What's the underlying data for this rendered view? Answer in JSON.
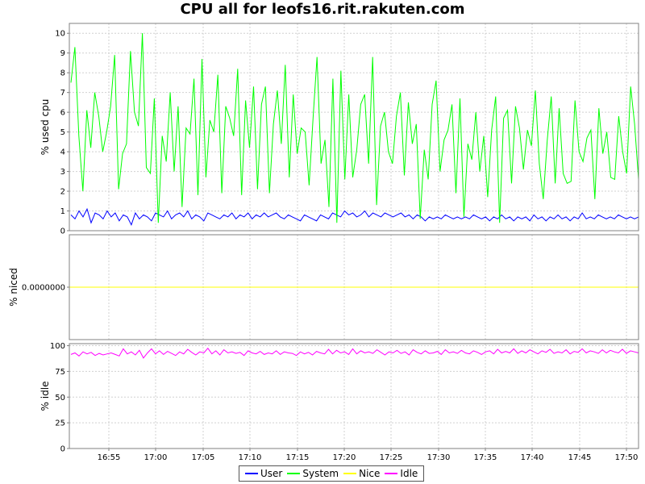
{
  "chart_data": {
    "type": "line",
    "title": "CPU all for leofs16.rit.rakuten.com",
    "x_ticks": [
      "16:55",
      "17:00",
      "17:05",
      "17:10",
      "17:15",
      "17:20",
      "17:25",
      "17:30",
      "17:35",
      "17:40",
      "17:45",
      "17:50"
    ],
    "x_range": [
      "16:51",
      "17:51"
    ],
    "grid": true,
    "legend_position": "bottom",
    "panels": [
      {
        "ylabel": "% used cpu",
        "ylim": [
          0,
          10.5
        ],
        "y_ticks": [
          "0",
          "1",
          "2",
          "3",
          "4",
          "5",
          "6",
          "7",
          "8",
          "9",
          "10"
        ],
        "series": [
          {
            "name": "User",
            "color": "#0000ff",
            "values": [
              0.8,
              0.6,
              1.0,
              0.7,
              1.1,
              0.4,
              0.9,
              0.8,
              0.6,
              1.0,
              0.7,
              0.9,
              0.5,
              0.8,
              0.7,
              0.3,
              0.9,
              0.6,
              0.8,
              0.7,
              0.5,
              0.9,
              0.8,
              0.7,
              1.0,
              0.6,
              0.8,
              0.9,
              0.7,
              1.0,
              0.6,
              0.8,
              0.7,
              0.5,
              0.9,
              0.8,
              0.7,
              0.6,
              0.8,
              0.7,
              0.9,
              0.6,
              0.8,
              0.7,
              0.9,
              0.6,
              0.8,
              0.7,
              0.9,
              0.7,
              0.8,
              0.9,
              0.7,
              0.6,
              0.8,
              0.7,
              0.6,
              0.5,
              0.8,
              0.7,
              0.6,
              0.5,
              0.8,
              0.7,
              0.6,
              0.9,
              0.8,
              0.7,
              1.0,
              0.8,
              0.9,
              0.7,
              0.8,
              1.0,
              0.7,
              0.9,
              0.8,
              0.7,
              0.9,
              0.8,
              0.7,
              0.8,
              0.9,
              0.7,
              0.8,
              0.6,
              0.8,
              0.7,
              0.5,
              0.7,
              0.6,
              0.7,
              0.6,
              0.8,
              0.7,
              0.6,
              0.7,
              0.6,
              0.7,
              0.6,
              0.8,
              0.7,
              0.6,
              0.7,
              0.5,
              0.7,
              0.6,
              0.8,
              0.6,
              0.7,
              0.5,
              0.7,
              0.6,
              0.7,
              0.5,
              0.8,
              0.6,
              0.7,
              0.5,
              0.7,
              0.6,
              0.8,
              0.6,
              0.7,
              0.5,
              0.7,
              0.6,
              0.9,
              0.6,
              0.7,
              0.6,
              0.8,
              0.7,
              0.6,
              0.7,
              0.6,
              0.8,
              0.7,
              0.6,
              0.7,
              0.6,
              0.7
            ]
          },
          {
            "name": "System",
            "color": "#00ff00",
            "values": [
              7.5,
              9.3,
              4.8,
              2.0,
              6.1,
              4.2,
              7.0,
              5.8,
              4.0,
              5.0,
              6.3,
              8.9,
              2.1,
              3.9,
              4.4,
              9.1,
              6.0,
              5.3,
              10.0,
              3.2,
              2.9,
              6.7,
              0.4,
              4.8,
              3.5,
              7.0,
              3.0,
              6.3,
              1.2,
              5.2,
              4.9,
              7.7,
              1.8,
              8.7,
              2.7,
              5.6,
              5.0,
              7.9,
              1.9,
              6.3,
              5.7,
              4.8,
              8.2,
              1.8,
              6.6,
              4.2,
              7.3,
              2.1,
              6.4,
              7.3,
              1.9,
              5.4,
              7.1,
              4.4,
              8.4,
              2.7,
              6.9,
              3.9,
              5.2,
              5.0,
              2.3,
              5.7,
              8.8,
              3.4,
              4.6,
              1.2,
              7.7,
              0.4,
              8.1,
              2.6,
              6.9,
              2.7,
              4.1,
              6.4,
              6.9,
              3.4,
              8.8,
              1.3,
              5.3,
              6.0,
              4.0,
              3.4,
              5.8,
              7.0,
              2.8,
              6.5,
              4.4,
              5.4,
              0.6,
              4.1,
              2.6,
              6.4,
              7.6,
              3.0,
              4.6,
              5.1,
              6.4,
              1.9,
              6.7,
              0.7,
              4.4,
              3.6,
              6.0,
              3.0,
              4.8,
              1.7,
              5.1,
              6.8,
              0.4,
              5.7,
              6.1,
              2.4,
              6.3,
              5.2,
              3.1,
              5.1,
              4.3,
              7.1,
              3.4,
              1.6,
              4.6,
              6.8,
              2.4,
              6.2,
              2.9,
              2.4,
              2.5,
              6.6,
              4.0,
              3.5,
              4.7,
              5.1,
              1.6,
              6.2,
              3.9,
              5.0,
              2.7,
              2.6,
              5.8,
              4.0,
              2.9,
              7.3,
              5.4,
              2.6
            ]
          }
        ]
      },
      {
        "ylabel": "% niced",
        "y_ticks": [
          "0.0000000"
        ],
        "series": [
          {
            "name": "Nice",
            "color": "#ffff00",
            "values": [
              0
            ]
          }
        ]
      },
      {
        "ylabel": "% idle",
        "ylim": [
          0,
          102
        ],
        "y_ticks": [
          "0",
          "25",
          "50",
          "75",
          "100"
        ],
        "series": [
          {
            "name": "Idle",
            "color": "#ff00ff",
            "values": [
              91.5,
              93.0,
              90.0,
              94.0,
              92.0,
              93.5,
              90.5,
              92.5,
              91.0,
              92.0,
              93.0,
              91.5,
              90.0,
              97.0,
              92.0,
              94.0,
              91.0,
              95.5,
              88.0,
              93.0,
              97.0,
              92.0,
              95.0,
              91.5,
              94.5,
              92.5,
              90.5,
              94.0,
              92.0,
              96.5,
              93.5,
              91.0,
              94.0,
              93.0,
              97.5,
              92.0,
              95.0,
              91.0,
              96.0,
              93.0,
              94.0,
              92.5,
              93.5,
              90.5,
              95.0,
              93.0,
              92.0,
              94.5,
              91.5,
              93.0,
              92.0,
              95.0,
              91.5,
              94.0,
              93.0,
              92.5,
              90.5,
              94.0,
              92.0,
              93.5,
              91.0,
              94.5,
              93.0,
              92.0,
              96.5,
              92.0,
              95.5,
              93.0,
              94.0,
              91.5,
              97.0,
              92.0,
              95.0,
              93.0,
              94.0,
              92.5,
              96.0,
              93.5,
              91.0,
              94.0,
              93.0,
              95.5,
              92.5,
              94.0,
              91.0,
              96.0,
              93.5,
              92.0,
              95.0,
              92.5,
              93.0,
              94.5,
              91.5,
              96.0,
              93.0,
              94.0,
              92.5,
              95.5,
              93.0,
              92.0,
              95.0,
              93.5,
              91.5,
              94.0,
              95.0,
              92.0,
              96.5,
              93.0,
              94.5,
              93.0,
              97.0,
              92.5,
              95.0,
              93.0,
              96.0,
              94.0,
              92.0,
              95.0,
              93.5,
              96.5,
              92.5,
              94.0,
              93.0,
              96.0,
              92.0,
              94.5,
              93.5,
              97.0,
              93.0,
              95.0,
              94.0,
              92.5,
              96.0,
              93.0,
              95.5,
              94.0,
              93.0,
              96.5,
              92.5,
              95.0,
              94.0,
              93.0
            ]
          }
        ]
      }
    ]
  },
  "legend": {
    "items": [
      {
        "label": "User",
        "color": "#0000ff"
      },
      {
        "label": "System",
        "color": "#00ff00"
      },
      {
        "label": "Nice",
        "color": "#ffff00"
      },
      {
        "label": "Idle",
        "color": "#ff00ff"
      }
    ]
  }
}
